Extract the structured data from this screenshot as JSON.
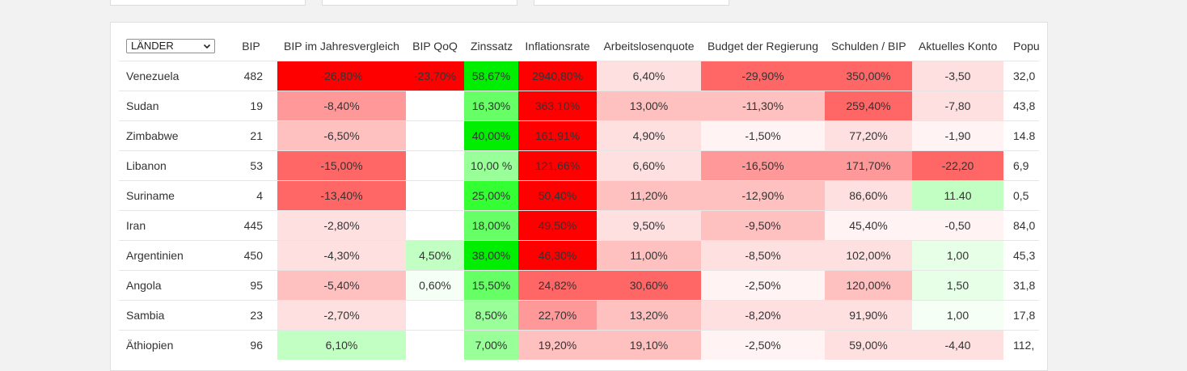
{
  "region_select": {
    "value": "LÄNDER"
  },
  "columns": [
    "BIP",
    "BIP im Jahresvergleich",
    "BIP QoQ",
    "Zinssatz",
    "Inflationsrate",
    "Arbeitslosenquote",
    "Budget der Regierung",
    "Schulden / BIP",
    "Aktuelles Konto",
    "Popul"
  ],
  "rows": [
    {
      "country": "Venezuela",
      "cells": [
        "482",
        "-26,80%",
        "-23,70%",
        "58,67%",
        "2940,80%",
        "6,40%",
        "-29,90%",
        "350,00%",
        "-3,50",
        "32,0"
      ]
    },
    {
      "country": "Sudan",
      "cells": [
        "19",
        "-8,40%",
        "",
        "16,30%",
        "363,10%",
        "13,00%",
        "-11,30%",
        "259,40%",
        "-7,80",
        "43,8"
      ]
    },
    {
      "country": "Zimbabwe",
      "cells": [
        "21",
        "-6,50%",
        "",
        "40,00%",
        "161,91%",
        "4,90%",
        "-1,50%",
        "77,20%",
        "-1,90",
        "14.8"
      ]
    },
    {
      "country": "Libanon",
      "cells": [
        "53",
        "-15,00%",
        "",
        "10,00 %",
        "121,66%",
        "6,60%",
        "-16,50%",
        "171,70%",
        "-22,20",
        "6,9"
      ]
    },
    {
      "country": "Suriname",
      "cells": [
        "4",
        "-13,40%",
        "",
        "25,00%",
        "50,40%",
        "11,20%",
        "-12,90%",
        "86,60%",
        "11.40",
        "0,5"
      ]
    },
    {
      "country": "Iran",
      "cells": [
        "445",
        "-2,80%",
        "",
        "18,00%",
        "49,50%",
        "9,50%",
        "-9,50%",
        "45,40%",
        "-0,50",
        "84,0"
      ]
    },
    {
      "country": "Argentinien",
      "cells": [
        "450",
        "-4,30%",
        "4,50%",
        "38,00%",
        "46,30%",
        "11,00%",
        "-8,50%",
        "102,00%",
        "1,00",
        "45,3"
      ]
    },
    {
      "country": "Angola",
      "cells": [
        "95",
        "-5,40%",
        "0,60%",
        "15,50%",
        "24,82%",
        "30,60%",
        "-2,50%",
        "120,00%",
        "1,50",
        "31,8"
      ]
    },
    {
      "country": "Sambia",
      "cells": [
        "23",
        "-2,70%",
        "",
        "8,50%",
        "22,70%",
        "13,20%",
        "-8,20%",
        "91,90%",
        "1,00",
        "17,8"
      ]
    },
    {
      "country": "Äthiopien",
      "cells": [
        "96",
        "6,10%",
        "",
        "7,00%",
        "19,20%",
        "19,10%",
        "-2,50%",
        "59,00%",
        "-4,40",
        "112,"
      ]
    }
  ],
  "heat_colors": {
    "strong_red": "#ff0000",
    "red": "#ff6666",
    "light_red": "#ffc0c0",
    "strong_green": "#00ee00",
    "light_green": "#c2ffc2"
  }
}
